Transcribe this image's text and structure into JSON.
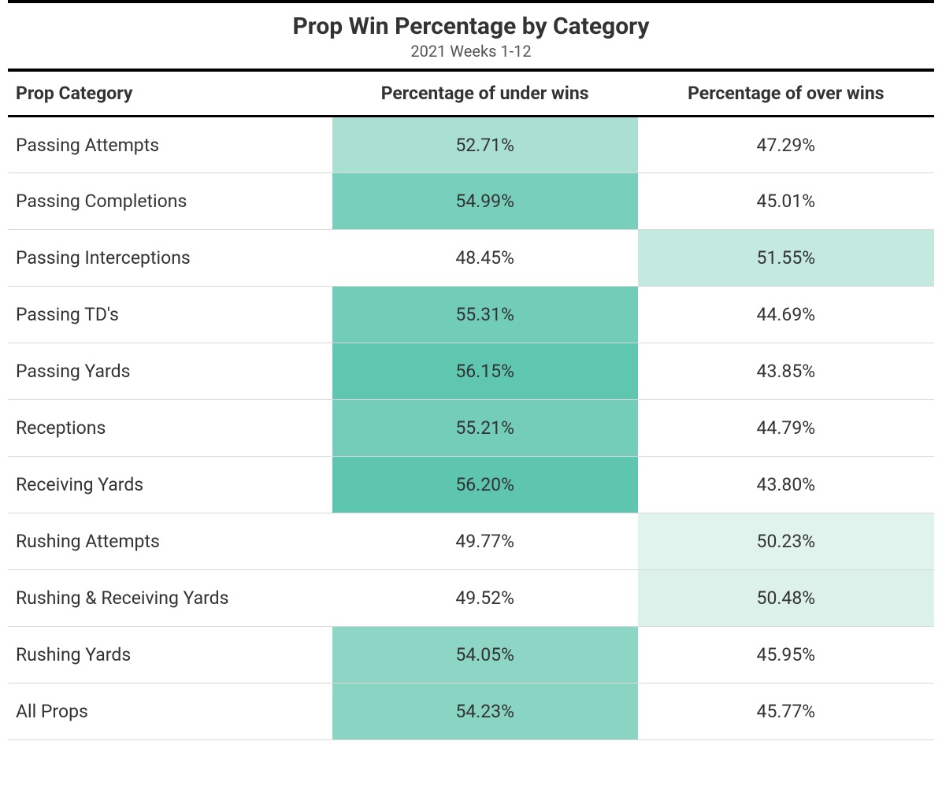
{
  "title": "Prop Win Percentage by Category",
  "subtitle": "2021 Weeks 1-12",
  "columns": {
    "category": "Prop Category",
    "under": "Percentage of under wins",
    "over": "Percentage of over wins"
  },
  "highlight_threshold": 50.0,
  "scale": {
    "min": 50.0,
    "max": 57.0,
    "low_color": "#e6f5ef",
    "high_color": "#4cbfa6"
  },
  "text_color": "#333333",
  "border_color": "#d9d9d9",
  "rows": [
    {
      "category": "Passing Attempts",
      "under": 52.71,
      "over": 47.29
    },
    {
      "category": "Passing Completions",
      "under": 54.99,
      "over": 45.01
    },
    {
      "category": "Passing Interceptions",
      "under": 48.45,
      "over": 51.55
    },
    {
      "category": "Passing TD's",
      "under": 55.31,
      "over": 44.69
    },
    {
      "category": "Passing Yards",
      "under": 56.15,
      "over": 43.85
    },
    {
      "category": "Receptions",
      "under": 55.21,
      "over": 44.79
    },
    {
      "category": "Receiving Yards",
      "under": 56.2,
      "over": 43.8
    },
    {
      "category": "Rushing Attempts",
      "under": 49.77,
      "over": 50.23
    },
    {
      "category": "Rushing & Receiving Yards",
      "under": 49.52,
      "over": 50.48
    },
    {
      "category": "Rushing Yards",
      "under": 54.05,
      "over": 45.95
    },
    {
      "category": "All Props",
      "under": 54.23,
      "over": 45.77
    }
  ]
}
